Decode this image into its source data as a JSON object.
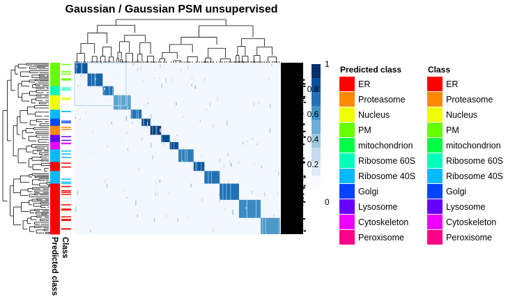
{
  "chart_data": {
    "type": "heatmap",
    "title": "Gaussian / Gaussian PSM unsupervised",
    "description_axis": {
      "color_scale_ticks": [
        0,
        0.2,
        0.4,
        0.6,
        0.8,
        1
      ],
      "color_scale_range": [
        0,
        1
      ],
      "color_low": "#f7fbff",
      "color_high": "#08306b"
    },
    "side_bar_labels": [
      "Class",
      "Predicted class"
    ],
    "legends": [
      {
        "title": "Predicted class",
        "entries": [
          "ER",
          "Proteasome",
          "Nucleus",
          "PM",
          "mitochondrion",
          "Ribosome 60S",
          "Ribosome 40S",
          "Golgi",
          "Lysosome",
          "Cytoskeleton",
          "Peroxisome"
        ]
      },
      {
        "title": "Class",
        "entries": [
          "ER",
          "Proteasome",
          "Nucleus",
          "PM",
          "mitochondrion",
          "Ribosome 60S",
          "Ribosome 40S",
          "Golgi",
          "Lysosome",
          "Cytoskeleton",
          "Peroxisome"
        ]
      }
    ],
    "class_colors": [
      "#ff0000",
      "#ff8800",
      "#eeff00",
      "#66ff00",
      "#00ff44",
      "#00ffbb",
      "#00bbff",
      "#0044ff",
      "#6600ff",
      "#ee00ff",
      "#ff0088"
    ],
    "clusters": [
      {
        "size": 0.06,
        "value": 0.85,
        "class": 3
      },
      {
        "size": 0.07,
        "value": 0.8,
        "class": 3
      },
      {
        "size": 0.05,
        "value": 0.75,
        "class": 5
      },
      {
        "size": 0.08,
        "value": 0.55,
        "class": 2
      },
      {
        "size": 0.05,
        "value": 0.75,
        "class": 6
      },
      {
        "size": 0.04,
        "value": 0.95,
        "class": 7
      },
      {
        "size": 0.05,
        "value": 0.95,
        "class": 1
      },
      {
        "size": 0.04,
        "value": 0.9,
        "class": 8
      },
      {
        "size": 0.04,
        "value": 0.9,
        "class": 9
      },
      {
        "size": 0.07,
        "value": 0.7,
        "class": 6
      },
      {
        "size": 0.05,
        "value": 0.85,
        "class": 0
      },
      {
        "size": 0.07,
        "value": 0.75,
        "class": 6
      },
      {
        "size": 0.09,
        "value": 0.75,
        "class": 0
      },
      {
        "size": 0.1,
        "value": 0.65,
        "class": 0
      },
      {
        "size": 0.09,
        "value": 0.6,
        "class": 0
      }
    ]
  }
}
